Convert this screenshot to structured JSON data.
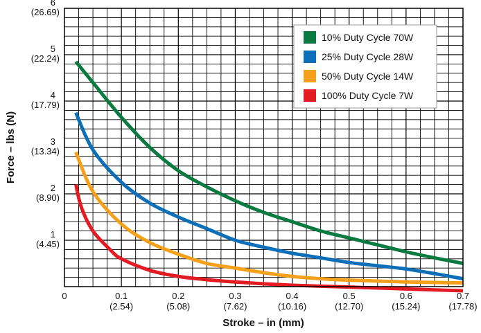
{
  "chart_data": {
    "type": "line",
    "title": "",
    "xlabel": "Stroke – in (mm)",
    "ylabel": "Force – lbs (N)",
    "xlim": [
      0,
      0.7
    ],
    "ylim": [
      0,
      6
    ],
    "grid": true,
    "legend_position": "top-right",
    "x_ticks": [
      {
        "value": 0,
        "primary": "0",
        "secondary": ""
      },
      {
        "value": 0.1,
        "primary": "0.1",
        "secondary": "(2.54)"
      },
      {
        "value": 0.2,
        "primary": "0.2",
        "secondary": "(5.08)"
      },
      {
        "value": 0.3,
        "primary": "0.3",
        "secondary": "(7.62)"
      },
      {
        "value": 0.4,
        "primary": "0.4",
        "secondary": "(10.16)"
      },
      {
        "value": 0.5,
        "primary": "0.5",
        "secondary": "(12.70)"
      },
      {
        "value": 0.6,
        "primary": "0.6",
        "secondary": "(15.24)"
      },
      {
        "value": 0.7,
        "primary": "0.7",
        "secondary": "(17.78)"
      }
    ],
    "y_ticks": [
      {
        "value": 1,
        "primary": "1",
        "secondary": "(4.45)"
      },
      {
        "value": 2,
        "primary": "2",
        "secondary": "(8.90)"
      },
      {
        "value": 3,
        "primary": "3",
        "secondary": "(13.34)"
      },
      {
        "value": 4,
        "primary": "4",
        "secondary": "(17.79)"
      },
      {
        "value": 5,
        "primary": "5",
        "secondary": "(22.24)"
      },
      {
        "value": 6,
        "primary": "6",
        "secondary": "(26.69)"
      }
    ],
    "series": [
      {
        "name": "10% Duty Cycle 70W",
        "color": "#0a7a40",
        "x": [
          0.02,
          0.05,
          0.1,
          0.15,
          0.2,
          0.25,
          0.3,
          0.35,
          0.4,
          0.45,
          0.5,
          0.55,
          0.6,
          0.65,
          0.7
        ],
        "y": [
          4.85,
          4.4,
          3.65,
          3.0,
          2.5,
          2.15,
          1.85,
          1.6,
          1.4,
          1.2,
          1.05,
          0.9,
          0.75,
          0.62,
          0.5
        ]
      },
      {
        "name": "25% Duty Cycle 28W",
        "color": "#0d6fb8",
        "x": [
          0.02,
          0.05,
          0.1,
          0.15,
          0.2,
          0.25,
          0.3,
          0.35,
          0.4,
          0.45,
          0.5,
          0.55,
          0.6,
          0.65,
          0.7
        ],
        "y": [
          3.75,
          2.95,
          2.25,
          1.8,
          1.5,
          1.25,
          1.0,
          0.85,
          0.72,
          0.62,
          0.52,
          0.45,
          0.38,
          0.28,
          0.17
        ]
      },
      {
        "name": "50% Duty Cycle 14W",
        "color": "#f5a01a",
        "x": [
          0.02,
          0.05,
          0.1,
          0.15,
          0.2,
          0.25,
          0.3,
          0.35,
          0.4,
          0.45,
          0.5,
          0.55,
          0.6,
          0.65,
          0.7
        ],
        "y": [
          2.9,
          2.05,
          1.35,
          0.95,
          0.7,
          0.5,
          0.4,
          0.3,
          0.22,
          0.17,
          0.14,
          0.12,
          0.1,
          0.09,
          0.08
        ]
      },
      {
        "name": "100% Duty Cycle 7W",
        "color": "#e31b23",
        "x": [
          0.02,
          0.03,
          0.05,
          0.08,
          0.1,
          0.15,
          0.2,
          0.25,
          0.3,
          0.35,
          0.4,
          0.45,
          0.5,
          0.55,
          0.6,
          0.65,
          0.7
        ],
        "y": [
          2.2,
          1.7,
          1.2,
          0.8,
          0.6,
          0.35,
          0.22,
          0.15,
          0.1,
          0.06,
          0.03,
          0.01,
          -0.01,
          -0.03,
          -0.05,
          -0.07,
          -0.09
        ]
      }
    ]
  }
}
